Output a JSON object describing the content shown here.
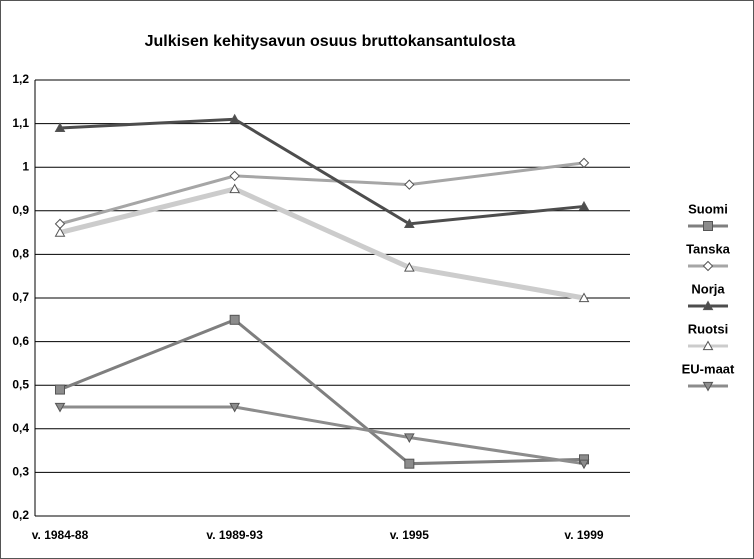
{
  "chart_data": {
    "type": "line",
    "title": "Julkisen kehitysavun osuus bruttokansantulosta",
    "categories": [
      "v. 1984-88",
      "v. 1989-93",
      "v. 1995",
      "v. 1999"
    ],
    "series": [
      {
        "name": "Suomi",
        "color": "#7f7f7f",
        "marker": "square",
        "marker_fill": "#8c8c8c",
        "values": [
          0.49,
          0.65,
          0.32,
          0.33
        ]
      },
      {
        "name": "Tanska",
        "color": "#a6a6a6",
        "marker": "diamond",
        "marker_fill": "#ffffff",
        "values": [
          0.87,
          0.98,
          0.96,
          1.01
        ]
      },
      {
        "name": "Norja",
        "color": "#4d4d4d",
        "marker": "triangle",
        "marker_fill": "#4d4d4d",
        "values": [
          1.09,
          1.11,
          0.87,
          0.91
        ]
      },
      {
        "name": "Ruotsi",
        "color": "#cccccc",
        "marker": "triangle",
        "marker_fill": "#ffffff",
        "values": [
          0.85,
          0.95,
          0.77,
          0.7
        ]
      },
      {
        "name": "EU-maat",
        "color": "#8c8c8c",
        "marker": "triangle-down",
        "marker_fill": "#8c8c8c",
        "values": [
          0.45,
          0.45,
          0.38,
          0.32
        ]
      }
    ],
    "ylim": [
      0.2,
      1.2
    ],
    "yticks": [
      {
        "value": 0.2,
        "label": "0,2"
      },
      {
        "value": 0.3,
        "label": "0,3"
      },
      {
        "value": 0.4,
        "label": "0,4"
      },
      {
        "value": 0.5,
        "label": "0,5"
      },
      {
        "value": 0.6,
        "label": "0,6"
      },
      {
        "value": 0.7,
        "label": "0,7"
      },
      {
        "value": 0.8,
        "label": "0,8"
      },
      {
        "value": 0.9,
        "label": "0,9"
      },
      1,
      {
        "value": 1.1,
        "label": "1,1"
      },
      {
        "value": 1.2,
        "label": "1,2"
      }
    ],
    "grid": true,
    "legend": "right"
  }
}
